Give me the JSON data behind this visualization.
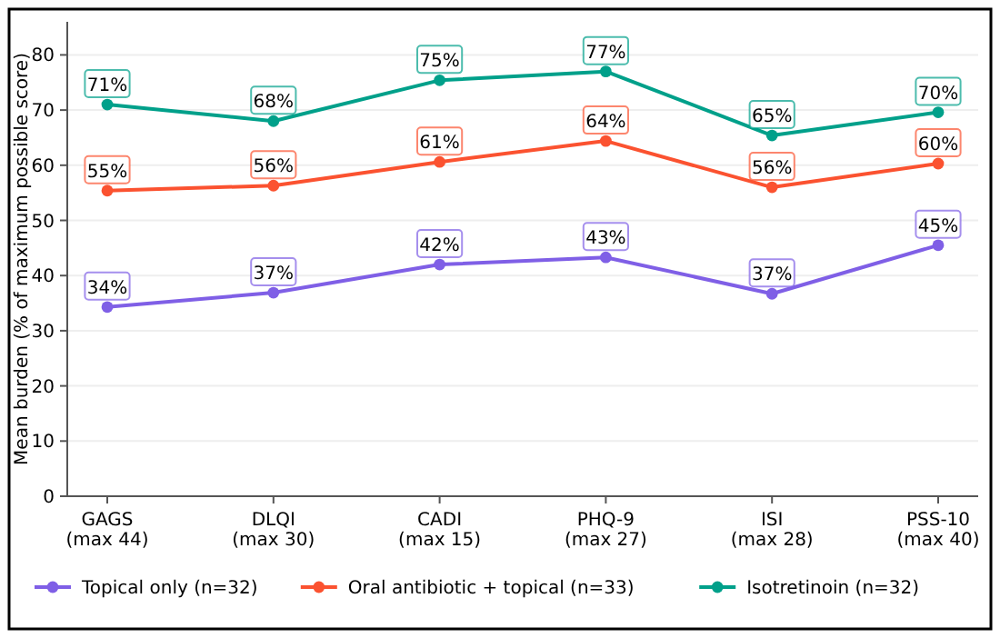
{
  "chart_data": {
    "type": "line",
    "ylabel": "Mean burden (% of maximum possible score)",
    "categories": [
      "GAGS\n(max 44)",
      "DLQI\n(max 30)",
      "CADI\n(max 15)",
      "PHQ-9\n(max 27)",
      "ISI\n(max 28)",
      "PSS-10\n(max 40)"
    ],
    "series": [
      {
        "name": "Topical only (n=32)",
        "color": "#7f5fe6",
        "values": [
          34.3,
          36.9,
          42,
          43.3,
          36.7,
          45.5
        ],
        "value_labels": [
          "34%",
          "37%",
          "42%",
          "43%",
          "37%",
          "45%"
        ]
      },
      {
        "name": "Oral antibiotic + topical (n=33)",
        "color": "#fb5230",
        "values": [
          55.4,
          56.3,
          60.6,
          64.4,
          56,
          60.3
        ],
        "value_labels": [
          "55%",
          "56%",
          "61%",
          "64%",
          "56%",
          "60%"
        ]
      },
      {
        "name": "Isotretinoin (n=32)",
        "color": "#00a08a",
        "values": [
          71,
          68,
          75.4,
          77,
          65.4,
          69.6
        ],
        "value_labels": [
          "71%",
          "68%",
          "75%",
          "77%",
          "65%",
          "70%"
        ]
      }
    ],
    "ylim": [
      0,
      86
    ],
    "yticks": [
      0,
      10,
      20,
      30,
      40,
      50,
      60,
      70,
      80
    ],
    "grid": "y",
    "legend": "bottom",
    "marker": "circle",
    "line_style": "solid"
  }
}
